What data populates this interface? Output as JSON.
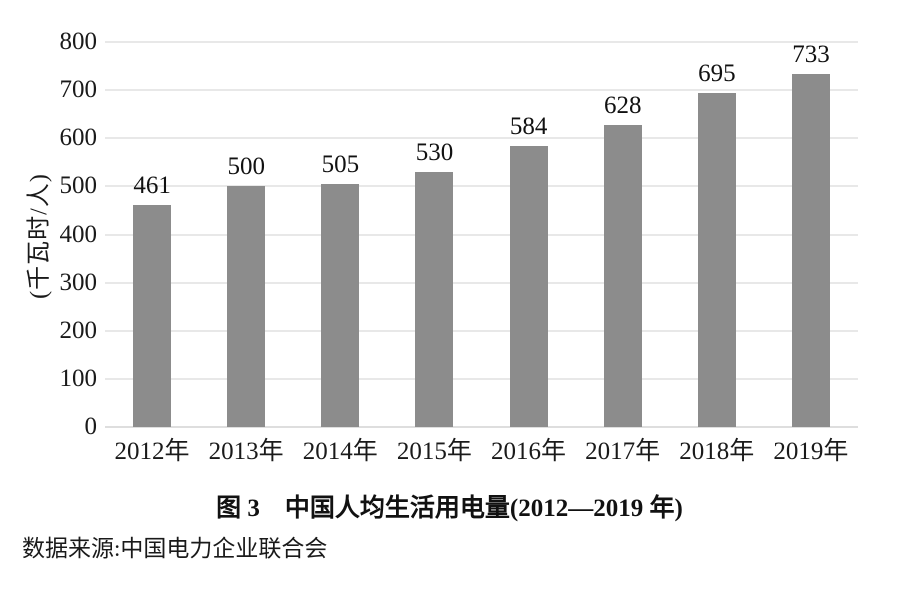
{
  "figure": {
    "caption": "图 3　中国人均生活用电量(2012—2019 年)",
    "source": "数据来源:中国电力企业联合会"
  },
  "chart_data": {
    "type": "bar",
    "categories": [
      "2012年",
      "2013年",
      "2014年",
      "2015年",
      "2016年",
      "2017年",
      "2018年",
      "2019年"
    ],
    "values": [
      461,
      500,
      505,
      530,
      584,
      628,
      695,
      733
    ],
    "title": "图 3　中国人均生活用电量(2012—2019 年)",
    "xlabel": "",
    "ylabel": "(千瓦时/人)",
    "ylim": [
      0,
      800
    ],
    "ytick_step": 100,
    "grid": true,
    "legend": "none",
    "value_labels": true,
    "bar_color": "#8c8c8c",
    "grid_color": "#e8e8e8",
    "text_color": "#1a1a1a"
  }
}
